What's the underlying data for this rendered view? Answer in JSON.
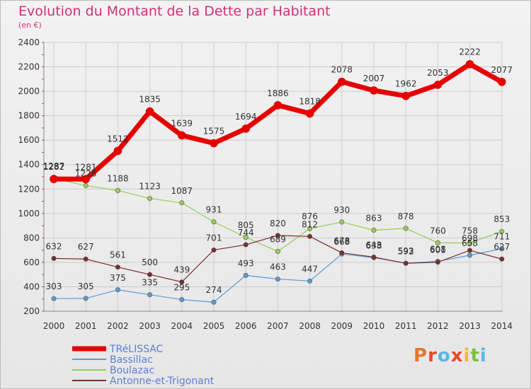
{
  "title": "Evolution du Montant de la Dette par Habitant",
  "subtitle": "(en €)",
  "colors": {
    "title": "#d0307a",
    "legend_text": "#5c7fd6",
    "grid": "#cccccc"
  },
  "logo": {
    "text": "Proxiti",
    "colors": [
      "#e8742a",
      "#e84a2a",
      "#5bb6e8",
      "#e84a2a",
      "#f2b933",
      "#7cbf3a",
      "#5bb6e8"
    ]
  },
  "chart_data": {
    "type": "line",
    "title": "Evolution du Montant de la Dette par Habitant",
    "subtitle": "(en €)",
    "x": [
      2000,
      2001,
      2002,
      2003,
      2004,
      2005,
      2006,
      2007,
      2008,
      2009,
      2010,
      2011,
      2012,
      2013,
      2014
    ],
    "ylim": [
      200,
      2400
    ],
    "yticks": [
      200,
      400,
      600,
      800,
      1000,
      1200,
      1400,
      1600,
      1800,
      2000,
      2200,
      2400
    ],
    "grid": true,
    "legend_position": "bottom-left",
    "series": [
      {
        "name": "TRéLISSAC",
        "color": "#e60000",
        "values": [
          1282,
          1281,
          1512,
          1835,
          1639,
          1575,
          1694,
          1886,
          1818,
          2078,
          2007,
          1962,
          2053,
          2222,
          2077
        ]
      },
      {
        "name": "Bassillac",
        "color": "#5b9bd5",
        "values": [
          303,
          305,
          375,
          335,
          295,
          274,
          493,
          463,
          447,
          668,
          638,
          593,
          608,
          658,
          711
        ]
      },
      {
        "name": "Boulazac",
        "color": "#92d050",
        "values": [
          1287,
          1228,
          1188,
          1123,
          1087,
          931,
          805,
          689,
          876,
          930,
          863,
          878,
          760,
          758,
          853
        ]
      },
      {
        "name": "Antonne-et-Trigonant",
        "color": "#7b2c2c",
        "values": [
          632,
          627,
          561,
          500,
          439,
          701,
          744,
          820,
          812,
          678,
          643,
          592,
          601,
          698,
          627
        ]
      }
    ]
  }
}
